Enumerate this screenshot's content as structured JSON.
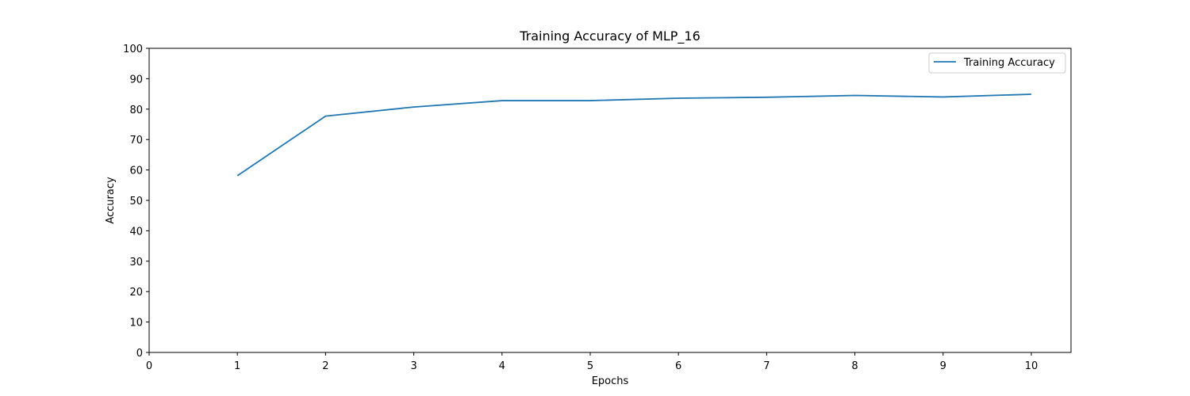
{
  "chart_data": {
    "type": "line",
    "title": "Training Accuracy of MLP_16",
    "xlabel": "Epochs",
    "ylabel": "Accuracy",
    "xlim": [
      0,
      10.45
    ],
    "ylim": [
      0,
      100
    ],
    "xticks": [
      0,
      1,
      2,
      3,
      4,
      5,
      6,
      7,
      8,
      9,
      10
    ],
    "yticks": [
      0,
      10,
      20,
      30,
      40,
      50,
      60,
      70,
      80,
      90,
      100
    ],
    "grid": false,
    "legend_position": "top-right",
    "series": [
      {
        "name": "Training Accuracy",
        "color": "#1f77b4",
        "x": [
          1,
          2,
          3,
          4,
          5,
          6,
          7,
          8,
          9,
          10
        ],
        "y": [
          58.1,
          77.7,
          80.7,
          82.8,
          82.8,
          83.6,
          83.9,
          84.5,
          84.0,
          84.9
        ]
      }
    ]
  }
}
